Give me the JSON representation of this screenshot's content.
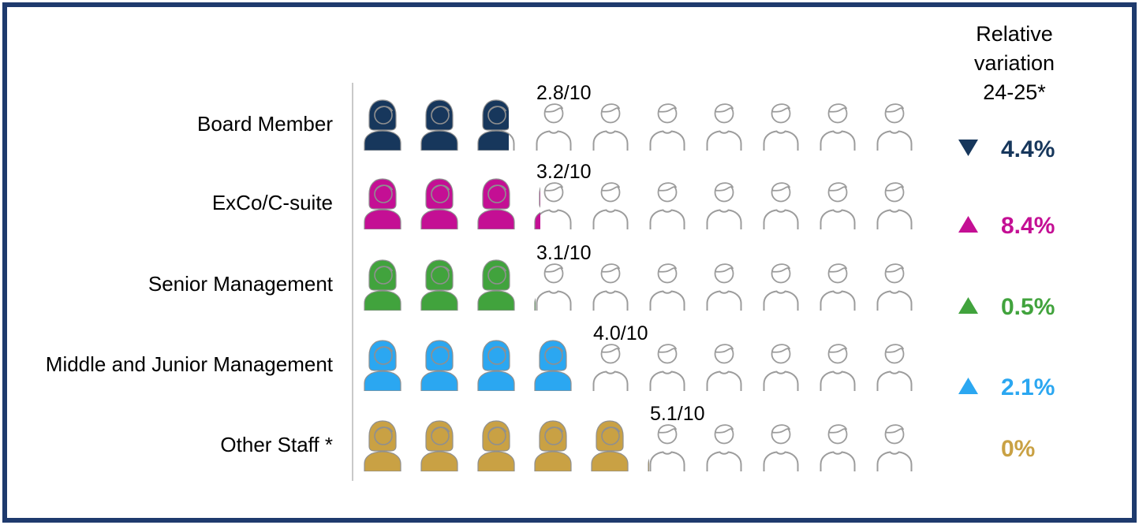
{
  "chart_data": {
    "type": "pictogram",
    "unit_total": 10,
    "legend_header": "Relative variation 24-25*",
    "rows": [
      {
        "label": "Board Member",
        "value": 2.8,
        "score_label": "2.8/10",
        "color": "#17375c",
        "variation_direction": "down",
        "variation_label": "4.4%"
      },
      {
        "label": "ExCo/C-suite",
        "value": 3.2,
        "score_label": "3.2/10",
        "color": "#c40f94",
        "variation_direction": "up",
        "variation_label": "8.4%"
      },
      {
        "label": "Senior Management",
        "value": 3.1,
        "score_label": "3.1/10",
        "color": "#41a33d",
        "variation_direction": "up",
        "variation_label": "0.5%"
      },
      {
        "label": "Middle and Junior Management",
        "value": 4.0,
        "score_label": "4.0/10",
        "color": "#2ba7f1",
        "variation_direction": "up",
        "variation_label": "2.1%"
      },
      {
        "label": "Other Staff *",
        "value": 5.1,
        "score_label": "5.1/10",
        "color": "#c9a144",
        "variation_direction": "none",
        "variation_label": "0%"
      }
    ]
  },
  "header": {
    "variation_title_line1": "Relative",
    "variation_title_line2": "variation",
    "variation_title_line3": "24-25*"
  },
  "icons": {
    "filled": "woman-silhouette-icon",
    "empty": "person-outline-icon",
    "up": "triangle-up-icon",
    "down": "triangle-down-icon"
  },
  "colors": {
    "border": "#1e3a6d",
    "separator": "#c9c9c9",
    "outline_gray": "#9c9c9c",
    "navy": "#17375c",
    "magenta": "#c40f94",
    "green": "#41a33d",
    "blue": "#2ba7f1",
    "gold": "#c9a144"
  }
}
